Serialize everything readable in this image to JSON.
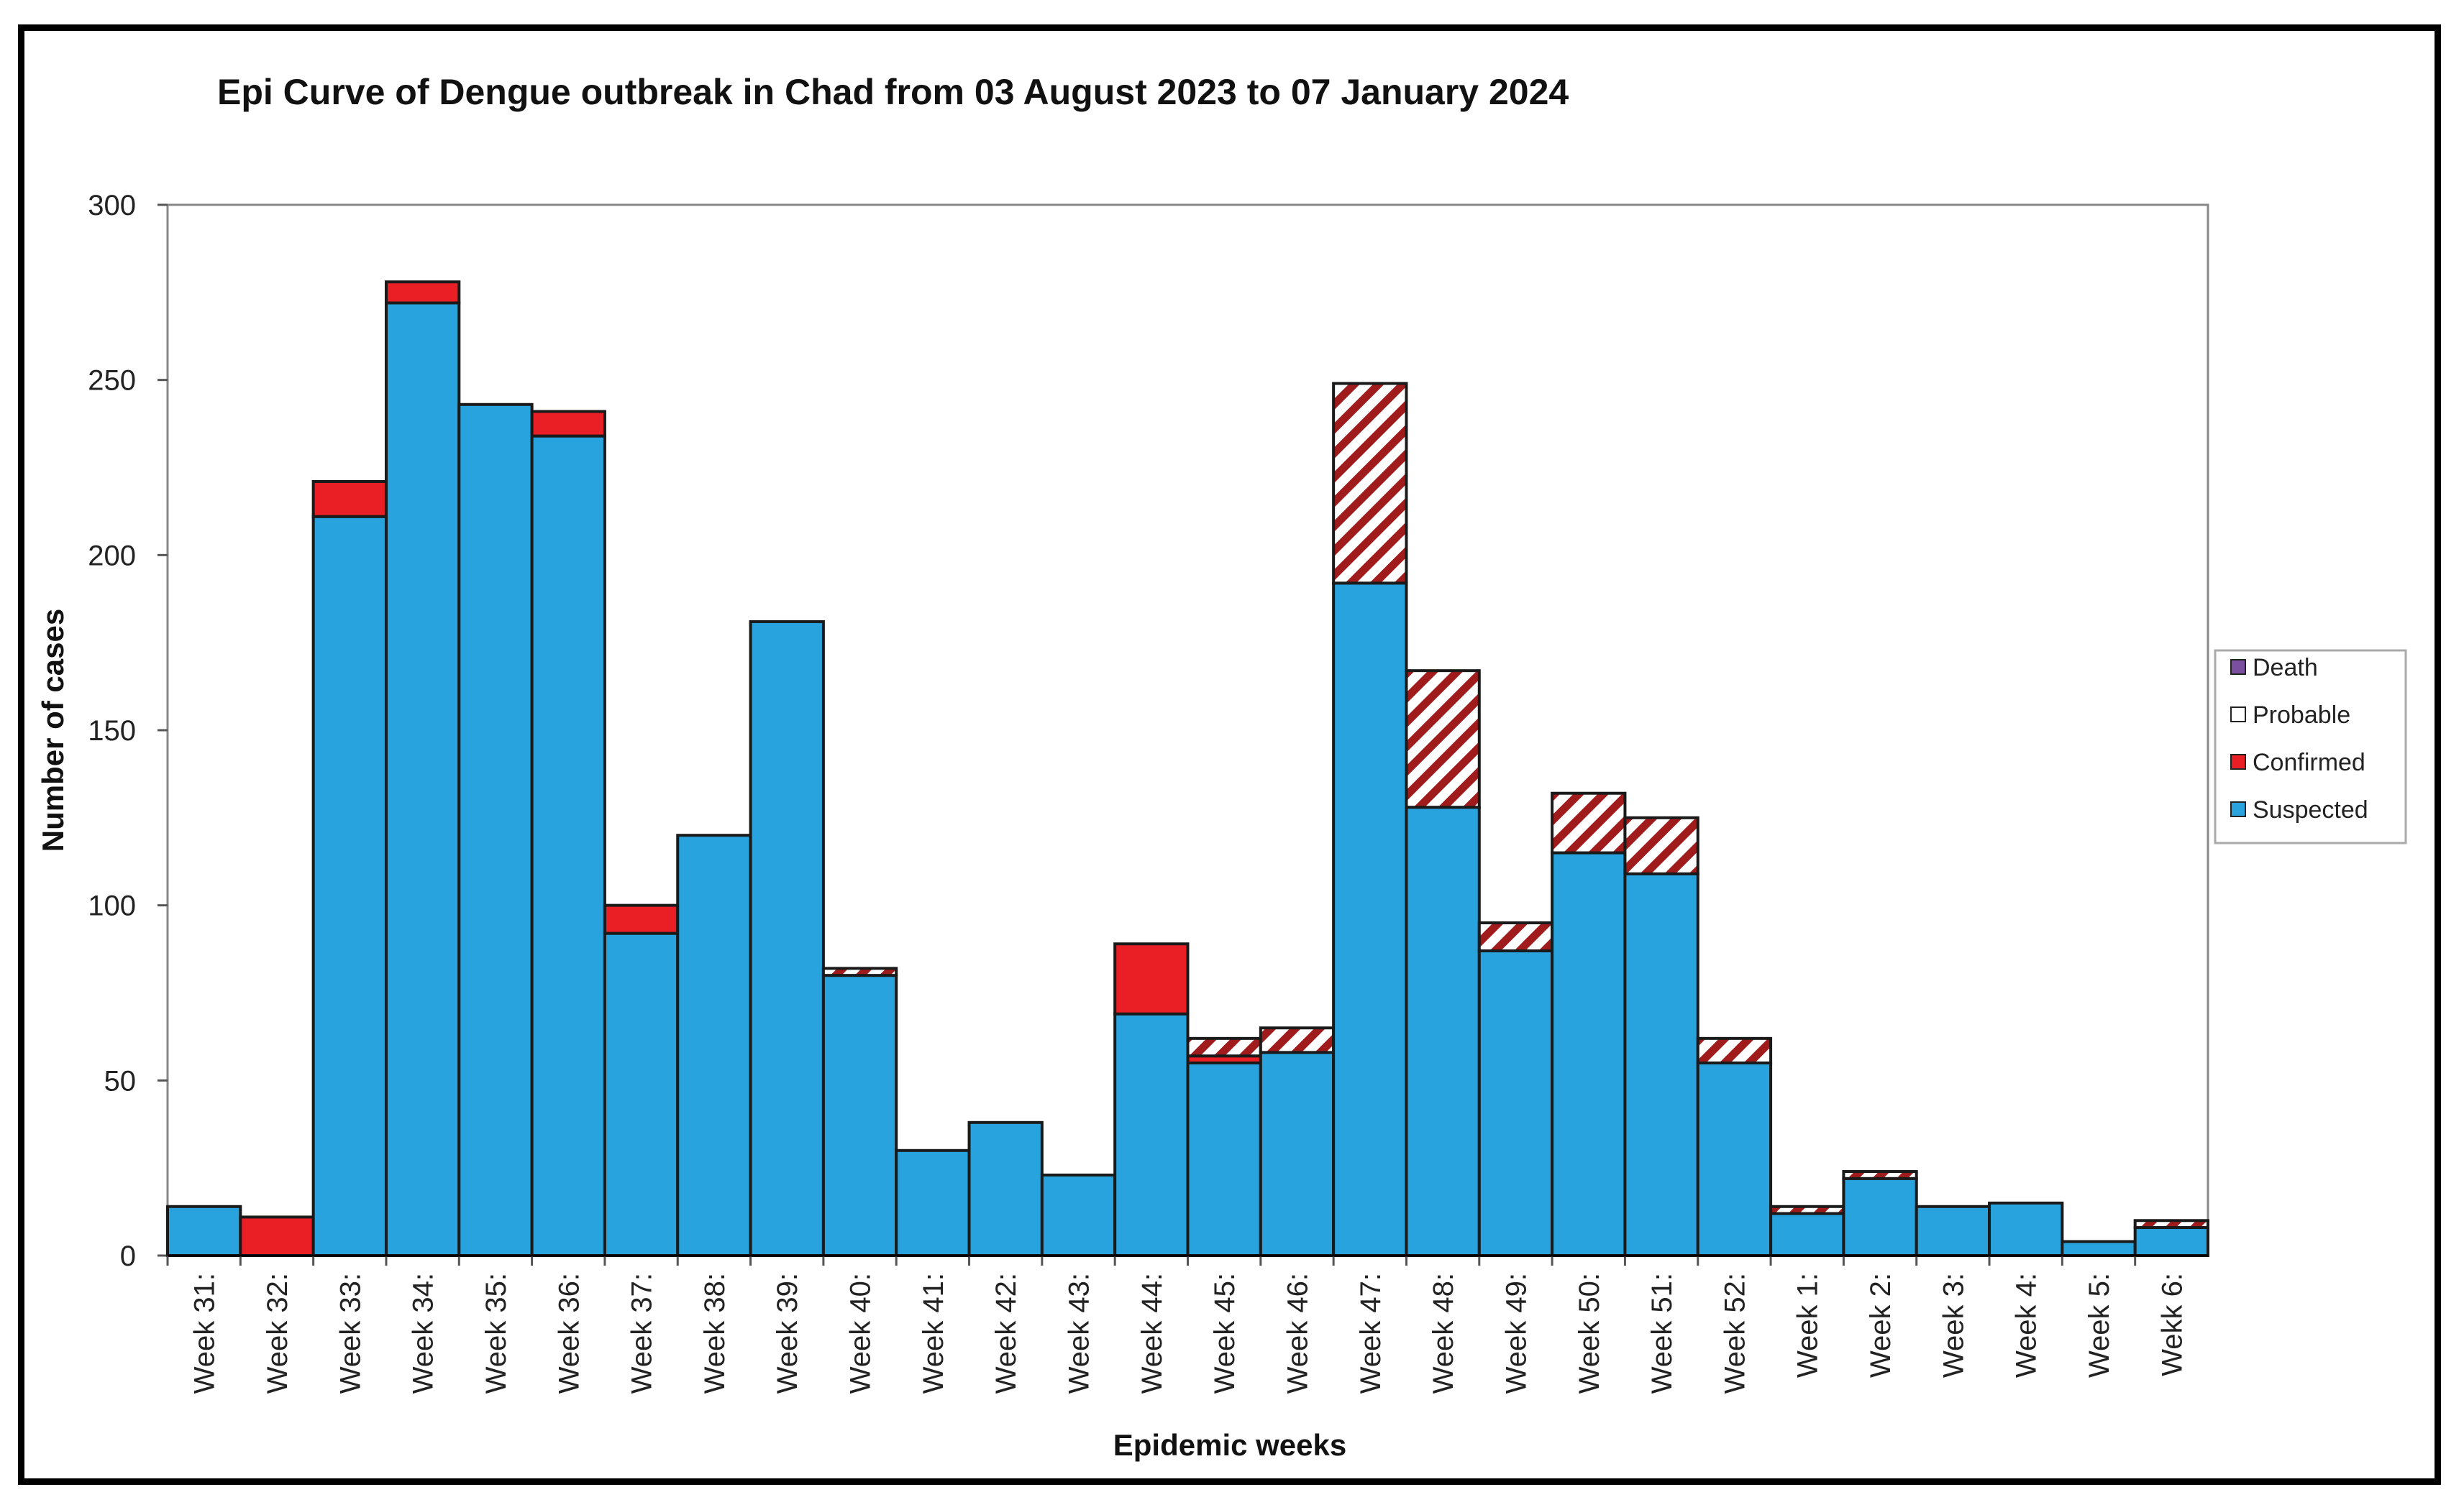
{
  "chart_data": {
    "type": "bar",
    "stacked": true,
    "title": "Epi Curve of Dengue outbreak in Chad from 03 August 2023 to 07 January 2024",
    "xlabel": "Epidemic weeks",
    "ylabel": "Number of cases",
    "ylim": [
      0,
      300
    ],
    "yticks": [
      0,
      50,
      100,
      150,
      200,
      250,
      300
    ],
    "grid": false,
    "legend_position": "right",
    "categories": [
      "Week 31:",
      "Week 32:",
      "Week 33:",
      "Week 34:",
      "Week 35:",
      "Week 36:",
      "Week 37:",
      "Week 38:",
      "Week 39:",
      "Week 40:",
      "Week 41:",
      "Week 42:",
      "Week 43:",
      "Week 44:",
      "Week 45:",
      "Week 46:",
      "Week 47:",
      "Week 48:",
      "Week 49:",
      "Week 50:",
      "Week 51:",
      "Week 52:",
      "Week 1:",
      "Week 2:",
      "Week 3:",
      "Week 4:",
      "Week 5:",
      "Wekk 6:"
    ],
    "series": [
      {
        "name": "Suspected",
        "color": "#29a3dd",
        "pattern": "solid",
        "values": [
          14,
          0,
          211,
          272,
          243,
          234,
          92,
          120,
          181,
          80,
          30,
          38,
          23,
          69,
          55,
          58,
          192,
          128,
          87,
          115,
          109,
          55,
          12,
          22,
          14,
          15,
          4,
          8
        ]
      },
      {
        "name": "Confirmed",
        "color": "#ea1f26",
        "pattern": "solid",
        "values": [
          0,
          11,
          10,
          6,
          0,
          7,
          8,
          0,
          0,
          0,
          0,
          0,
          0,
          20,
          2,
          0,
          0,
          0,
          0,
          0,
          0,
          0,
          0,
          0,
          0,
          0,
          0,
          0
        ]
      },
      {
        "name": "Probable",
        "color": "#a01c1c",
        "pattern": "hatched",
        "values": [
          0,
          0,
          0,
          0,
          0,
          0,
          0,
          0,
          0,
          2,
          0,
          0,
          0,
          0,
          5,
          7,
          57,
          39,
          8,
          17,
          16,
          7,
          2,
          2,
          0,
          0,
          0,
          2
        ]
      },
      {
        "name": "Death",
        "color": "#7b4fa0",
        "pattern": "solid",
        "values": [
          0,
          0,
          0,
          0,
          0,
          0,
          0,
          0,
          0,
          0,
          0,
          0,
          0,
          0,
          0,
          0,
          0,
          0,
          0,
          0,
          0,
          0,
          0,
          0,
          0,
          0,
          0,
          0
        ]
      }
    ],
    "legend_order": [
      "Death",
      "Probable",
      "Confirmed",
      "Suspected"
    ]
  }
}
